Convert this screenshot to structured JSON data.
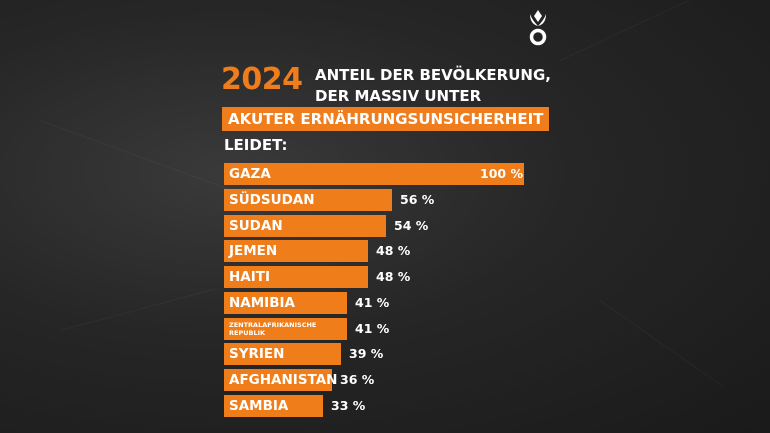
{
  "chart_data": {
    "type": "bar",
    "orientation": "horizontal",
    "year": "2024",
    "title_lines": [
      "ANTEIL DER BEVÖLKERUNG,",
      "DER MASSIV UNTER",
      "AKUTER ERNÄHRUNGSUNSICHERHEIT",
      "LEIDET:"
    ],
    "categories": [
      "GAZA",
      "SÜDSUDAN",
      "SUDAN",
      "JEMEN",
      "HAITI",
      "NAMIBIA",
      "ZENTRALAFRIKANISCHE REPUBLIK",
      "SYRIEN",
      "AFGHANISTAN",
      "SAMBIA"
    ],
    "values": [
      100,
      56,
      54,
      48,
      48,
      41,
      41,
      39,
      36,
      33
    ],
    "value_labels": [
      "100 %",
      "56 %",
      "54 %",
      "48 %",
      "48 %",
      "41 %",
      "41 %",
      "39 %",
      "36 %",
      "33 %"
    ],
    "color": "#ef7d1a"
  }
}
